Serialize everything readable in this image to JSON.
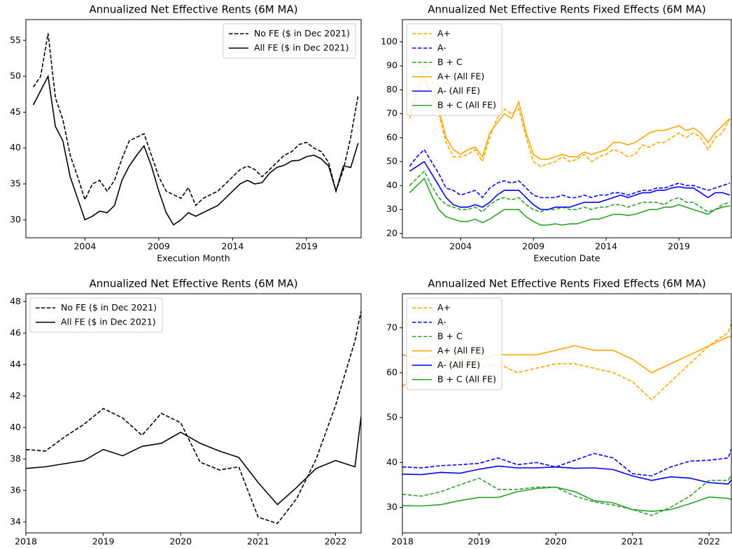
{
  "chart_data": [
    {
      "type": "line",
      "title": "Annualized Net Effective Rents (6M MA)",
      "xlabel": "Execution Month",
      "legend_loc": "upper right",
      "x": [
        2000.5,
        2001,
        2001.5,
        2002,
        2002.5,
        2003,
        2003.5,
        2004,
        2004.5,
        2005,
        2005.5,
        2006,
        2006.5,
        2007,
        2007.5,
        2008,
        2008.5,
        2009,
        2009.5,
        2010,
        2010.5,
        2011,
        2011.5,
        2012,
        2012.5,
        2013,
        2013.5,
        2014,
        2014.5,
        2015,
        2015.5,
        2016,
        2016.5,
        2017,
        2017.5,
        2018,
        2018.5,
        2019,
        2019.5,
        2020,
        2020.5,
        2021,
        2021.5,
        2022,
        2022.5
      ],
      "xlim": [
        2000,
        2022.7
      ],
      "xticks": [
        2004,
        2009,
        2014,
        2019
      ],
      "ylim": [
        27.5,
        57.9
      ],
      "yticks": [
        30,
        35,
        40,
        45,
        50,
        55
      ],
      "series": [
        {
          "name": "No FE ($ in Dec 2021)",
          "color": "#000000",
          "linestyle": "dashed",
          "values": [
            48.5,
            50,
            56,
            47,
            44,
            39,
            36,
            32.8,
            35,
            35.5,
            34,
            35.5,
            38.5,
            41,
            41.5,
            42,
            39,
            36,
            34,
            33.5,
            33,
            34.5,
            32,
            33,
            33.5,
            34,
            35,
            36,
            37,
            37.5,
            37,
            36,
            37,
            38,
            39,
            39.5,
            40.5,
            40.8,
            40,
            39.5,
            38,
            34,
            37,
            41.5,
            47.4
          ]
        },
        {
          "name": "All FE ($ in Dec 2021)",
          "color": "#000000",
          "linestyle": "solid",
          "values": [
            46,
            48,
            50,
            43,
            41,
            36,
            33,
            30,
            30.5,
            31.2,
            31,
            32,
            35.5,
            37.5,
            39,
            40.3,
            37.5,
            34,
            31,
            29.3,
            30,
            31,
            30.5,
            31,
            31.5,
            32,
            33,
            34,
            35,
            35.5,
            35,
            35.2,
            36.5,
            37.3,
            37.6,
            38.2,
            38.3,
            38.8,
            39,
            38.5,
            37.5,
            34,
            37.5,
            37.3,
            40.7
          ]
        }
      ]
    },
    {
      "type": "line",
      "title": "Annualized Net Effective Rents Fixed Effects (6M MA)",
      "xlabel": "Execution Date",
      "legend_loc": "upper left",
      "x": [
        2000.5,
        2001,
        2001.5,
        2002,
        2002.5,
        2003,
        2003.5,
        2004,
        2004.5,
        2005,
        2005.5,
        2006,
        2006.5,
        2007,
        2007.5,
        2008,
        2008.5,
        2009,
        2009.5,
        2010,
        2010.5,
        2011,
        2011.5,
        2012,
        2012.5,
        2013,
        2013.5,
        2014,
        2014.5,
        2015,
        2015.5,
        2016,
        2016.5,
        2017,
        2017.5,
        2018,
        2018.5,
        2019,
        2019.5,
        2020,
        2020.5,
        2021,
        2021.5,
        2022,
        2022.5
      ],
      "xlim": [
        2000,
        2022.6
      ],
      "xticks": [
        2004,
        2009,
        2014,
        2019
      ],
      "ylim": [
        18.2,
        109.3
      ],
      "yticks": [
        20,
        30,
        40,
        50,
        60,
        70,
        80,
        90,
        100
      ],
      "series": [
        {
          "name": "A+",
          "color": "#ffa500",
          "linestyle": "dashed",
          "values": [
            70,
            80,
            90,
            85,
            70,
            58,
            52,
            52,
            53,
            55,
            50,
            60,
            68,
            72,
            70,
            72,
            60,
            50,
            48,
            49,
            50,
            52,
            50,
            51,
            53,
            50,
            52,
            53,
            55,
            54,
            52,
            53,
            57,
            56,
            58,
            58,
            60,
            62,
            60,
            62,
            60,
            55,
            60,
            62,
            68
          ]
        },
        {
          "name": "A-",
          "color": "#0000ff",
          "linestyle": "dashed",
          "values": [
            48,
            52,
            55,
            50,
            45,
            39,
            38,
            36,
            37,
            38,
            35,
            39,
            41,
            42,
            41,
            42,
            39,
            36,
            35,
            35,
            35,
            36,
            35,
            35,
            36,
            35,
            36,
            36,
            37,
            37,
            36,
            37,
            38,
            38,
            39,
            39,
            40,
            41,
            40,
            40,
            39,
            38,
            39,
            40,
            41
          ]
        },
        {
          "name": "B + C",
          "color": "#2ca02c",
          "linestyle": "dashed",
          "values": [
            40,
            43,
            46,
            40,
            35,
            32,
            31,
            30,
            30,
            31,
            29,
            32,
            34,
            35,
            34,
            35,
            32,
            30,
            29,
            30,
            30,
            31,
            30,
            30,
            31,
            30,
            31,
            31,
            32,
            32,
            31,
            32,
            33,
            33,
            33,
            32,
            34,
            35,
            33,
            33,
            31,
            29,
            30,
            32,
            33
          ]
        },
        {
          "name": "A+ (All FE)",
          "color": "#ffa500",
          "linestyle": "solid",
          "values": [
            68,
            78,
            85,
            78,
            72,
            60,
            55,
            53,
            55,
            56,
            52,
            62,
            66,
            70,
            68,
            75,
            62,
            53,
            51,
            51,
            52,
            53,
            52,
            52,
            54,
            53,
            54,
            55,
            58,
            58,
            57,
            58,
            60,
            62,
            63,
            63,
            64,
            65,
            63,
            64,
            62,
            58,
            62,
            65,
            68
          ]
        },
        {
          "name": "A- (All FE)",
          "color": "#0000ff",
          "linestyle": "solid",
          "values": [
            46,
            48,
            50,
            45,
            40,
            35,
            32,
            31,
            31,
            32,
            31,
            33,
            36,
            38,
            38,
            38,
            35,
            32,
            30,
            30,
            31,
            31,
            31,
            32,
            33,
            33,
            33,
            34,
            35,
            36,
            35,
            36,
            37,
            37,
            38,
            38,
            39,
            39.5,
            39,
            39,
            37,
            35,
            37,
            37,
            36
          ]
        },
        {
          "name": "B + C (All FE)",
          "color": "#2ca02c",
          "linestyle": "solid",
          "values": [
            37,
            40,
            43,
            36,
            30,
            27,
            26,
            25,
            25,
            26,
            24.5,
            26,
            28,
            30,
            30,
            30,
            27,
            25,
            23.5,
            23.5,
            24,
            23.5,
            24,
            24,
            25,
            26,
            26,
            27,
            28,
            28,
            27.5,
            28,
            29,
            30,
            30,
            31,
            31,
            32,
            31,
            30,
            29,
            28,
            30,
            31,
            31.5
          ]
        }
      ]
    },
    {
      "type": "line",
      "title": "Annualized Net Effective Rents (6M MA)",
      "xlabel": "Execution Month",
      "legend_loc": "upper left",
      "x": [
        2018,
        2018.25,
        2018.5,
        2018.75,
        2019,
        2019.25,
        2019.5,
        2019.75,
        2020,
        2020.25,
        2020.5,
        2020.75,
        2021,
        2021.25,
        2021.5,
        2021.75,
        2022,
        2022.25,
        2022.33
      ],
      "xlim": [
        2018,
        2022.33
      ],
      "xticks": [
        2018,
        2019,
        2020,
        2021,
        2022
      ],
      "ylim": [
        33.3,
        48.5
      ],
      "yticks": [
        34,
        36,
        38,
        40,
        42,
        44,
        46,
        48
      ],
      "series": [
        {
          "name": "No FE ($ in Dec 2021)",
          "color": "#000000",
          "linestyle": "dashed",
          "values": [
            38.6,
            38.5,
            39.4,
            40.2,
            41.2,
            40.6,
            39.5,
            40.9,
            40.3,
            37.8,
            37.3,
            37.5,
            34.3,
            33.9,
            35.5,
            38.0,
            41.4,
            45.5,
            47.4
          ]
        },
        {
          "name": "All FE ($ in Dec 2021)",
          "color": "#000000",
          "linestyle": "solid",
          "values": [
            37.4,
            37.5,
            37.7,
            37.9,
            38.6,
            38.2,
            38.8,
            39.0,
            39.7,
            39.0,
            38.5,
            38.1,
            36.5,
            35.1,
            36.2,
            37.4,
            37.9,
            37.5,
            40.7
          ]
        }
      ]
    },
    {
      "type": "line",
      "title": "Annualized Net Effective Rents Fixed Effects (6M MA)",
      "xlabel": "Execution Date",
      "legend_loc": "upper left",
      "x": [
        2018,
        2018.25,
        2018.5,
        2018.75,
        2019,
        2019.25,
        2019.5,
        2019.75,
        2020,
        2020.25,
        2020.5,
        2020.75,
        2021,
        2021.25,
        2021.5,
        2021.75,
        2022,
        2022.25,
        2022.33
      ],
      "xlim": [
        2018,
        2022.29
      ],
      "xticks": [
        2018,
        2019,
        2020,
        2021,
        2022
      ],
      "ylim": [
        24.3,
        77.6
      ],
      "yticks": [
        30,
        40,
        50,
        60,
        70
      ],
      "series": [
        {
          "name": "A+",
          "color": "#ffa500",
          "linestyle": "dashed",
          "values": [
            57,
            60,
            63,
            62,
            61,
            62,
            60,
            61,
            62,
            62,
            61,
            60,
            58,
            54,
            58,
            62,
            66,
            69,
            73
          ]
        },
        {
          "name": "A-",
          "color": "#0000ff",
          "linestyle": "dashed",
          "values": [
            39,
            38.8,
            39.3,
            39.5,
            39.8,
            41,
            39.5,
            40,
            39,
            40.5,
            42,
            41,
            37.5,
            37,
            39,
            40.3,
            40.5,
            41,
            45
          ]
        },
        {
          "name": "B + C",
          "color": "#2ca02c",
          "linestyle": "dashed",
          "values": [
            32.9,
            32.5,
            33.5,
            35,
            36.5,
            34,
            34,
            34.5,
            34.5,
            32.5,
            31.2,
            30.5,
            29.5,
            28.2,
            30,
            32.5,
            36,
            36,
            38.5
          ]
        },
        {
          "name": "A+ (All FE)",
          "color": "#ffa500",
          "linestyle": "solid",
          "values": [
            64,
            63,
            64,
            63,
            63,
            64,
            64,
            64,
            65,
            66,
            65,
            65,
            63,
            60,
            62,
            64,
            66,
            68,
            68
          ]
        },
        {
          "name": "A- (All FE)",
          "color": "#0000ff",
          "linestyle": "solid",
          "values": [
            37.4,
            37.3,
            37.8,
            37.6,
            38.5,
            39.2,
            38.8,
            38.8,
            39,
            38.7,
            38.8,
            38.4,
            37,
            36,
            36.8,
            36.5,
            35.5,
            35.2,
            37
          ]
        },
        {
          "name": "B + C (All FE)",
          "color": "#2ca02c",
          "linestyle": "solid",
          "values": [
            30.4,
            30.3,
            30.6,
            31.5,
            32.2,
            32.2,
            33.5,
            34.2,
            34.5,
            33.5,
            31.5,
            31,
            29.5,
            29.1,
            29.5,
            30.8,
            32.3,
            32,
            31.5
          ]
        }
      ]
    }
  ]
}
